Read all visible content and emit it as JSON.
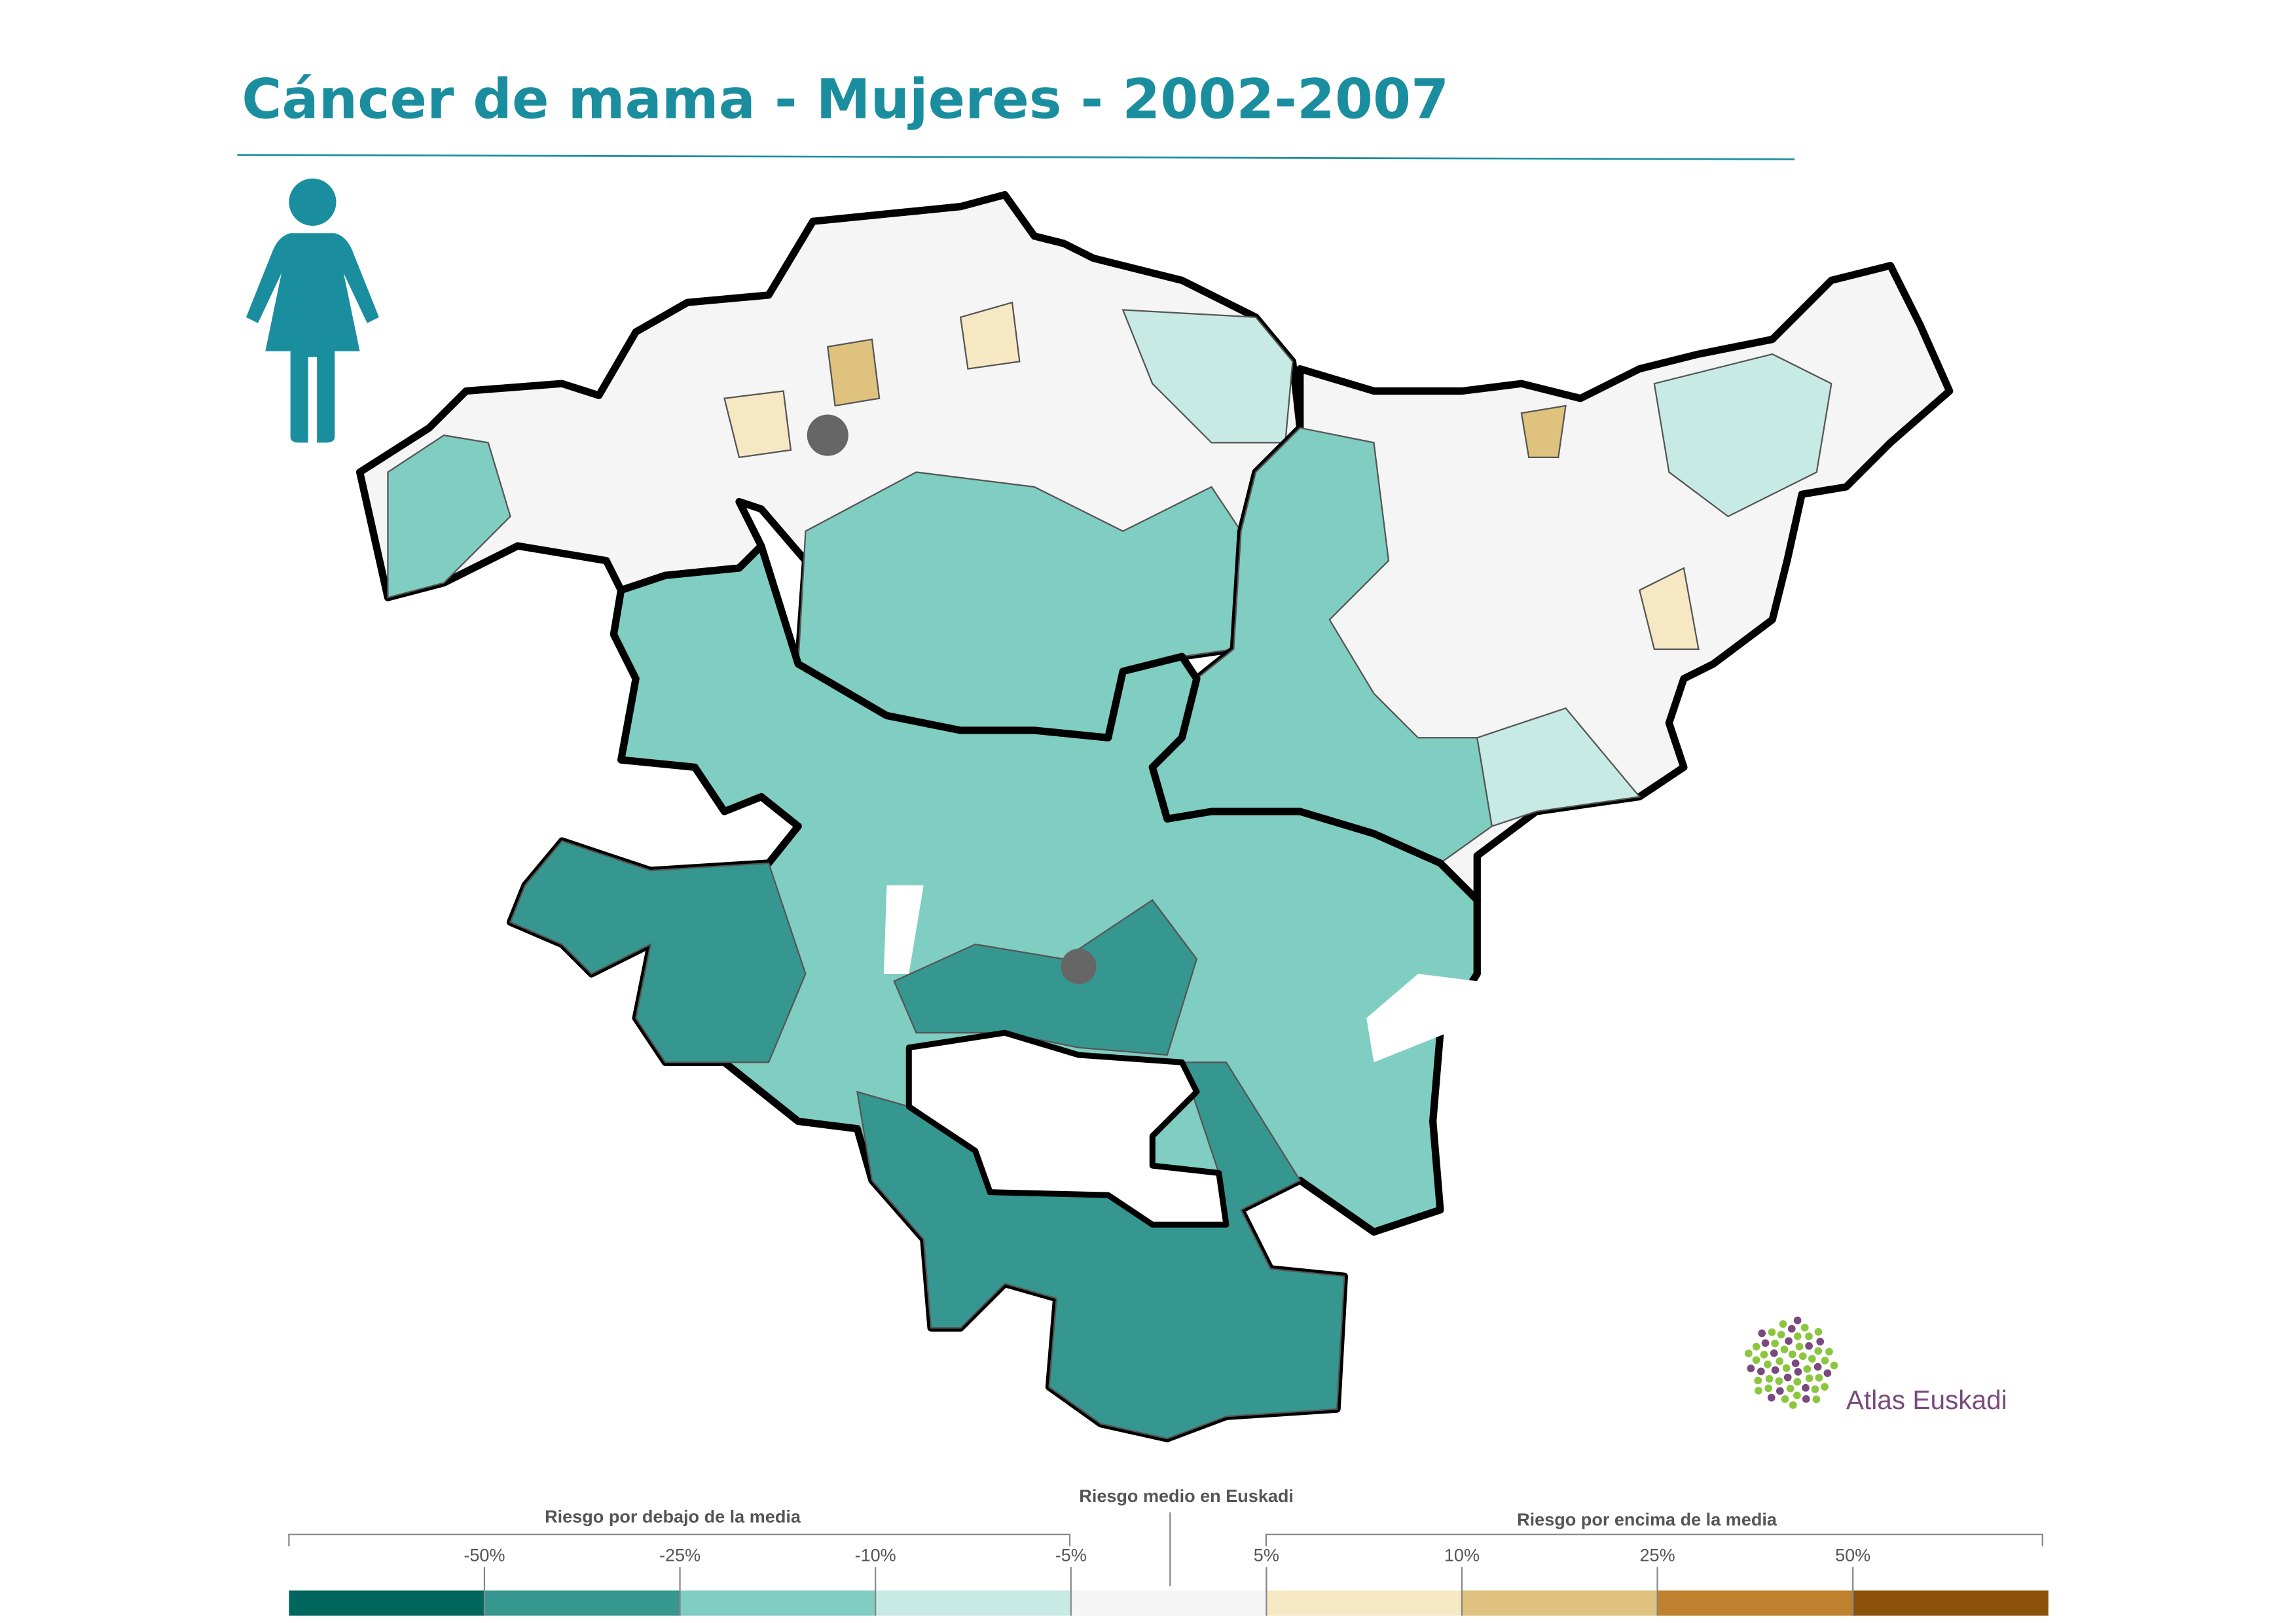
{
  "header": {
    "title": "Cáncer de mama - Mujeres - 2002-2007"
  },
  "legend": {
    "below_label": "Riesgo por debajo de la media",
    "mean_label": "Riesgo medio en Euskadi",
    "above_label": "Riesgo por encima de la media",
    "ticks": [
      "-50%",
      "-25%",
      "-10%",
      "-5%",
      "5%",
      "10%",
      "25%",
      "50%"
    ],
    "colors": [
      "#01665e",
      "#35978f",
      "#80cdc1",
      "#c7eae5",
      "#f5f5f5",
      "#f6e8c3",
      "#dfc27d",
      "#bf812d",
      "#8c510a"
    ]
  },
  "logo": {
    "text": "Atlas Euskadi"
  }
}
